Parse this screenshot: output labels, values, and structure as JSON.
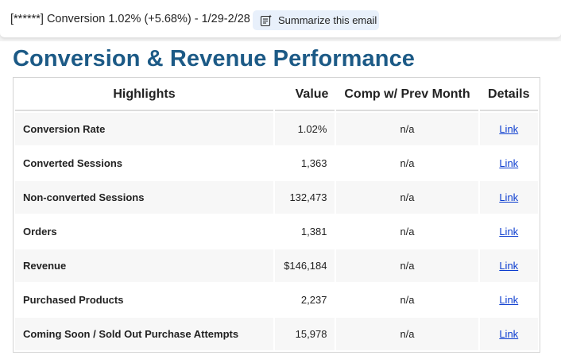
{
  "header": {
    "subject": "[******] Conversion 1.02% (+5.68%) - 1/29-2/28",
    "summarize_label": "Summarize this email",
    "summarize_icon": "summarize-icon"
  },
  "email": {
    "title": "Conversion & Revenue Performance",
    "title_color": "#1c5a86",
    "table": {
      "headers": [
        "Highlights",
        "Value",
        "Comp w/ Prev Month",
        "Details"
      ],
      "rows": [
        {
          "name": "Conversion Rate",
          "value": "1.02%",
          "comp": "n/a",
          "details": "Link"
        },
        {
          "name": "Converted Sessions",
          "value": "1,363",
          "comp": "n/a",
          "details": "Link"
        },
        {
          "name": "Non-converted Sessions",
          "value": "132,473",
          "comp": "n/a",
          "details": "Link"
        },
        {
          "name": "Orders",
          "value": "1,381",
          "comp": "n/a",
          "details": "Link"
        },
        {
          "name": "Revenue",
          "value": "$146,184",
          "comp": "n/a",
          "details": "Link"
        },
        {
          "name": "Purchased Products",
          "value": "2,237",
          "comp": "n/a",
          "details": "Link"
        },
        {
          "name": "Coming Soon / Sold Out Purchase Attempts",
          "value": "15,978",
          "comp": "n/a",
          "details": "Link"
        }
      ]
    }
  }
}
